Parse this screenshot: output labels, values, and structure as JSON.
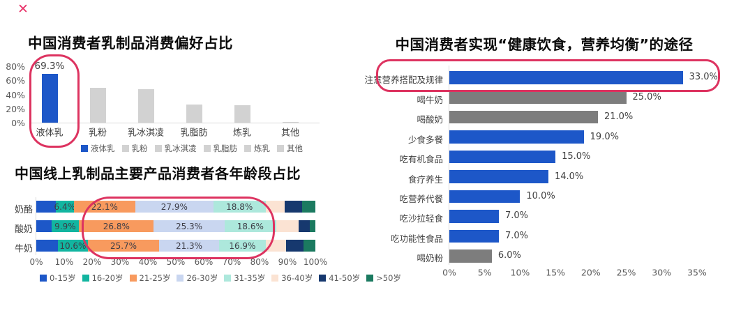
{
  "page": {
    "close_icon": "✕",
    "background": "#ffffff"
  },
  "colors": {
    "accent_blue": "#1d57c8",
    "light_gray_bar": "#d2d2d2",
    "dark_gray_bar": "#7d7d7d",
    "highlight_red": "#dd3360",
    "axis_line": "#d9d9d9",
    "tick_text": "#595959",
    "label_text": "#3f3f3f",
    "stacked_palette": [
      "#1d57c8",
      "#12b5a0",
      "#f89a5e",
      "#c9d6f0",
      "#ade8dc",
      "#fbe3d3",
      "#16386e",
      "#1b7a60"
    ]
  },
  "chart_data": [
    {
      "id": "dairy-preference",
      "type": "bar",
      "title": "中国消费者乳制品消费偏好占比",
      "categories": [
        "液体乳",
        "乳粉",
        "乳冰淇凌",
        "乳脂肪",
        "炼乳",
        "其他"
      ],
      "values": [
        69.3,
        50,
        48,
        26,
        25,
        1
      ],
      "data_labels": [
        "69.3%",
        "",
        "",
        "",
        "",
        ""
      ],
      "highlight_index": 0,
      "y_ticks": [
        {
          "label": "80%",
          "value": 80
        },
        {
          "label": "60%",
          "value": 60
        },
        {
          "label": "40%",
          "value": 40
        },
        {
          "label": "20%",
          "value": 20
        },
        {
          "label": "0%",
          "value": 0
        }
      ],
      "ylim": [
        0,
        80
      ],
      "legend": [
        "液体乳",
        "乳粉",
        "乳冰淇凌",
        "乳脂肪",
        "炼乳",
        "其他"
      ],
      "legend_position": "bottom"
    },
    {
      "id": "age-distribution",
      "type": "stacked-bar-horizontal",
      "title": "中国线上乳制品主要产品消费者各年龄段占比",
      "categories": [
        "奶酪",
        "酸奶",
        "牛奶"
      ],
      "series": [
        {
          "name": "0-15岁",
          "values": [
            7.0,
            5.4,
            7.8
          ],
          "labeled": false
        },
        {
          "name": "16-20岁",
          "values": [
            6.4,
            9.9,
            10.6
          ],
          "labeled": true
        },
        {
          "name": "21-25岁",
          "values": [
            22.1,
            26.8,
            25.7
          ],
          "labeled": true
        },
        {
          "name": "26-30岁",
          "values": [
            27.9,
            25.3,
            21.3
          ],
          "labeled": true
        },
        {
          "name": "31-35岁",
          "values": [
            18.8,
            18.6,
            16.9
          ],
          "labeled": true
        },
        {
          "name": "36-40岁",
          "values": [
            6.9,
            8.0,
            7.2
          ],
          "labeled": false
        },
        {
          "name": "41-50岁",
          "values": [
            6.1,
            4.0,
            6.2
          ],
          "labeled": false
        },
        {
          "name": ">50岁",
          "values": [
            4.8,
            2.0,
            4.3
          ],
          "labeled": false
        }
      ],
      "segment_labels": [
        [
          "6.4%",
          "22.1%",
          "27.9%",
          "18.8%"
        ],
        [
          "9.9%",
          "26.8%",
          "25.3%",
          "18.6%"
        ],
        [
          "10.6%",
          "25.7%",
          "21.3%",
          "16.9%"
        ]
      ],
      "x_ticks": [
        "0%",
        "10%",
        "20%",
        "30%",
        "40%",
        "50%",
        "60%",
        "70%",
        "80%",
        "90%",
        "100%"
      ],
      "xlim": [
        0,
        100
      ],
      "legend": [
        "0-15岁",
        "16-20岁",
        "21-25岁",
        "26-30岁",
        "31-35岁",
        "36-40岁",
        "41-50岁",
        ">50岁"
      ],
      "legend_position": "bottom"
    },
    {
      "id": "healthy-diet-ways",
      "type": "bar-horizontal",
      "title": "中国消费者实现“健康饮食，营养均衡”的途径",
      "categories": [
        "注意营养搭配及规律",
        "喝牛奶",
        "喝酸奶",
        "少食多餐",
        "吃有机食品",
        "食疗养生",
        "吃营养代餐",
        "吃沙拉轻食",
        "吃功能性食品",
        "喝奶粉"
      ],
      "values": [
        33,
        25,
        21,
        19,
        15,
        14,
        10,
        7,
        7,
        6
      ],
      "data_labels": [
        "33.0%",
        "25.0%",
        "21.0%",
        "19.0%",
        "15.0%",
        "14.0%",
        "10.0%",
        "7.0%",
        "7.0%",
        "6.0%"
      ],
      "bar_color_types": [
        "blue",
        "gray",
        "gray",
        "blue",
        "blue",
        "blue",
        "blue",
        "blue",
        "blue",
        "gray"
      ],
      "highlight_index": 0,
      "x_ticks": [
        "0%",
        "5%",
        "10%",
        "15%",
        "20%",
        "25%",
        "30%",
        "35%"
      ],
      "xlim": [
        0,
        35
      ]
    }
  ]
}
